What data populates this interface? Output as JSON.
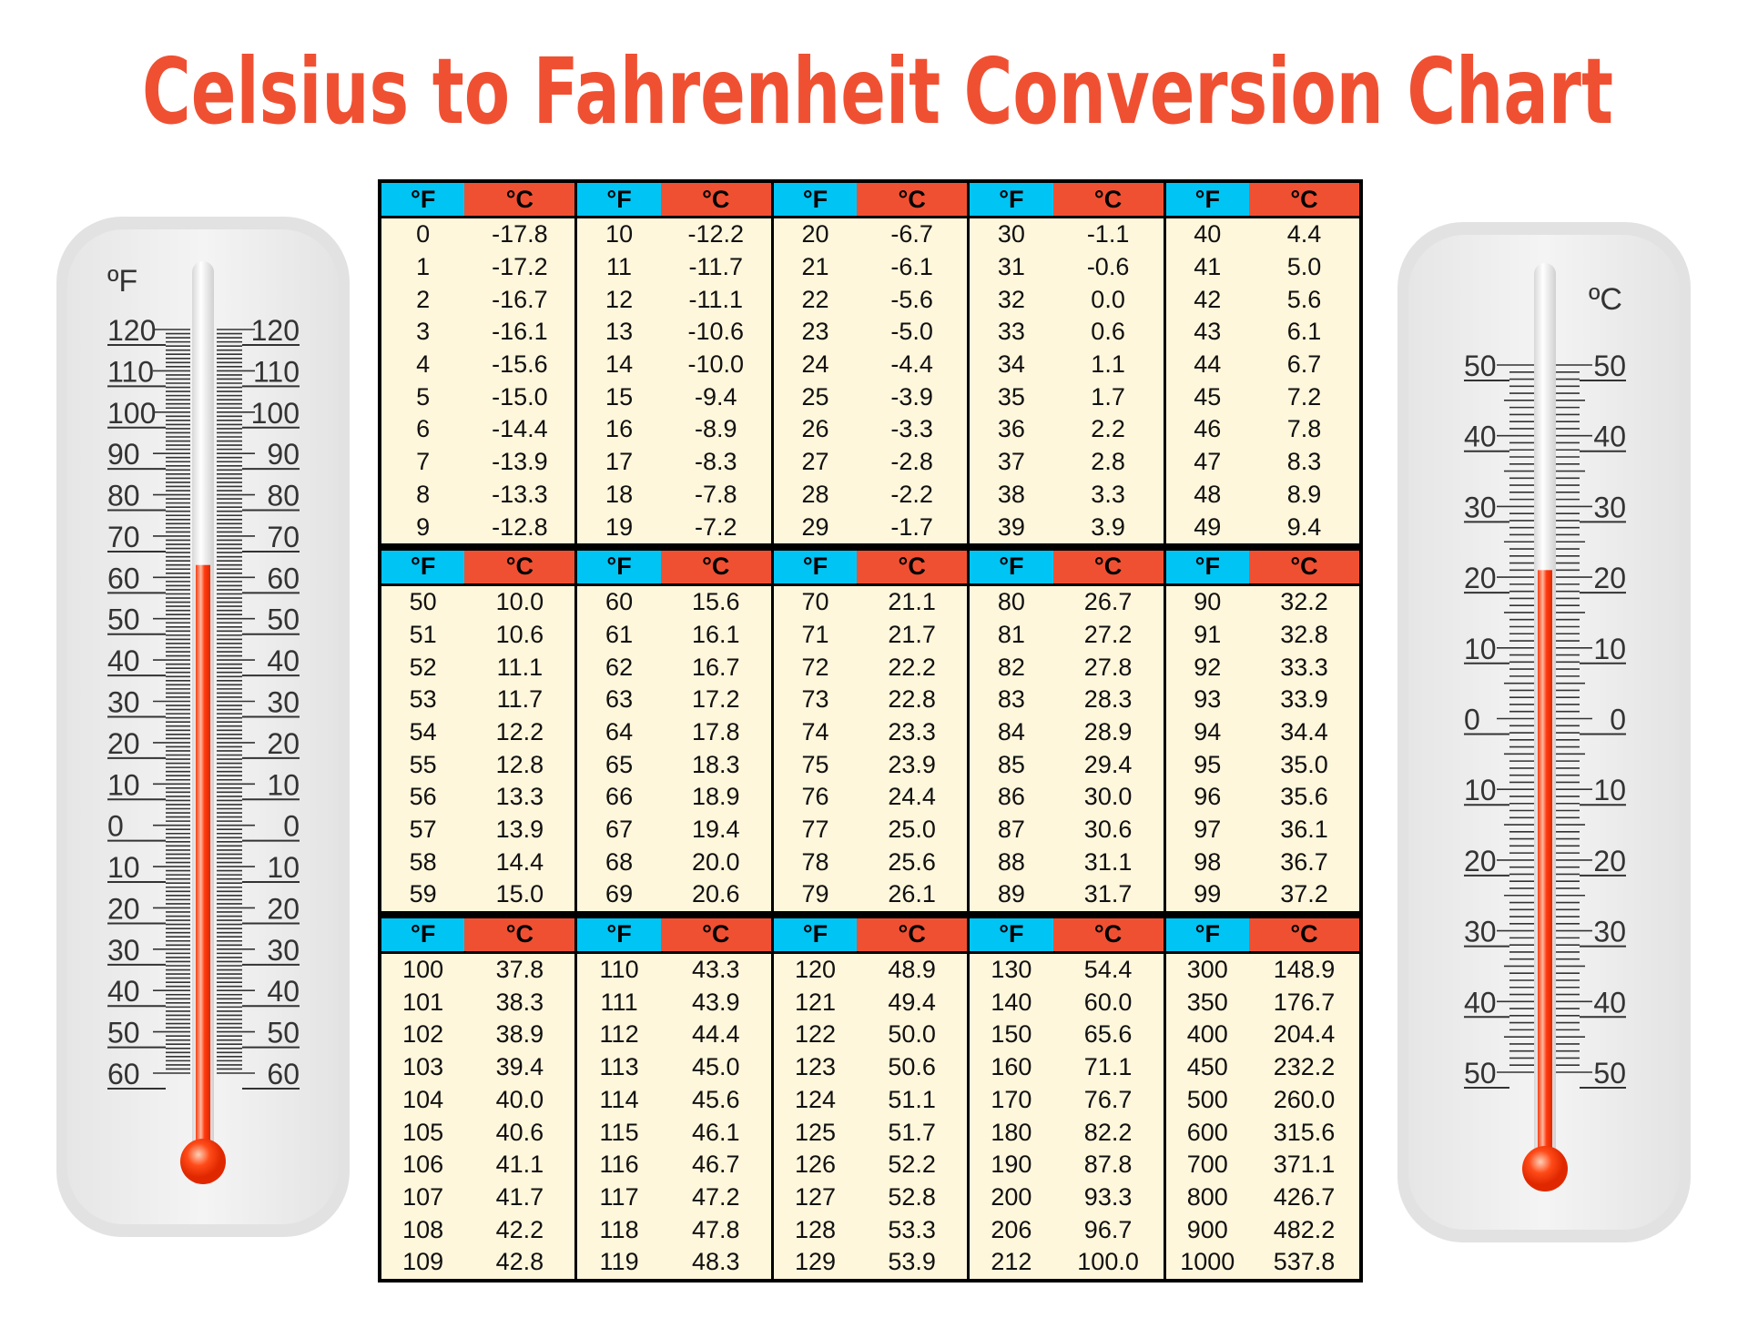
{
  "title": "Celsius to Fahrenheit Conversion Chart",
  "colors": {
    "title": "#f05032",
    "fahrenheit_header": "#00c4f4",
    "celsius_header": "#f05032",
    "cell_background": "#fff7dc",
    "mercury": "#ff3a10"
  },
  "thermometer_left": {
    "unit": "ºF",
    "labels": [
      "120",
      "110",
      "100",
      "90",
      "80",
      "70",
      "60",
      "50",
      "40",
      "30",
      "20",
      "10",
      "0",
      "10",
      "20",
      "30",
      "40",
      "50",
      "60"
    ],
    "range": [
      -60,
      120
    ],
    "reading": 63
  },
  "thermometer_right": {
    "unit": "ºC",
    "labels": [
      "50",
      "40",
      "30",
      "20",
      "10",
      "0",
      "10",
      "20",
      "30",
      "40",
      "50"
    ],
    "range": [
      -50,
      50
    ],
    "reading": 21
  },
  "chart_data": {
    "type": "table",
    "title": "Celsius to Fahrenheit Conversion Chart",
    "header": {
      "f": "°F",
      "c": "°C"
    },
    "sections": [
      [
        [
          [
            "0",
            "-17.8"
          ],
          [
            "1",
            "-17.2"
          ],
          [
            "2",
            "-16.7"
          ],
          [
            "3",
            "-16.1"
          ],
          [
            "4",
            "-15.6"
          ],
          [
            "5",
            "-15.0"
          ],
          [
            "6",
            "-14.4"
          ],
          [
            "7",
            "-13.9"
          ],
          [
            "8",
            "-13.3"
          ],
          [
            "9",
            "-12.8"
          ]
        ],
        [
          [
            "10",
            "-12.2"
          ],
          [
            "11",
            "-11.7"
          ],
          [
            "12",
            "-11.1"
          ],
          [
            "13",
            "-10.6"
          ],
          [
            "14",
            "-10.0"
          ],
          [
            "15",
            "-9.4"
          ],
          [
            "16",
            "-8.9"
          ],
          [
            "17",
            "-8.3"
          ],
          [
            "18",
            "-7.8"
          ],
          [
            "19",
            "-7.2"
          ]
        ],
        [
          [
            "20",
            "-6.7"
          ],
          [
            "21",
            "-6.1"
          ],
          [
            "22",
            "-5.6"
          ],
          [
            "23",
            "-5.0"
          ],
          [
            "24",
            "-4.4"
          ],
          [
            "25",
            "-3.9"
          ],
          [
            "26",
            "-3.3"
          ],
          [
            "27",
            "-2.8"
          ],
          [
            "28",
            "-2.2"
          ],
          [
            "29",
            "-1.7"
          ]
        ],
        [
          [
            "30",
            "-1.1"
          ],
          [
            "31",
            "-0.6"
          ],
          [
            "32",
            "0.0"
          ],
          [
            "33",
            "0.6"
          ],
          [
            "34",
            "1.1"
          ],
          [
            "35",
            "1.7"
          ],
          [
            "36",
            "2.2"
          ],
          [
            "37",
            "2.8"
          ],
          [
            "38",
            "3.3"
          ],
          [
            "39",
            "3.9"
          ]
        ],
        [
          [
            "40",
            "4.4"
          ],
          [
            "41",
            "5.0"
          ],
          [
            "42",
            "5.6"
          ],
          [
            "43",
            "6.1"
          ],
          [
            "44",
            "6.7"
          ],
          [
            "45",
            "7.2"
          ],
          [
            "46",
            "7.8"
          ],
          [
            "47",
            "8.3"
          ],
          [
            "48",
            "8.9"
          ],
          [
            "49",
            "9.4"
          ]
        ]
      ],
      [
        [
          [
            "50",
            "10.0"
          ],
          [
            "51",
            "10.6"
          ],
          [
            "52",
            "11.1"
          ],
          [
            "53",
            "11.7"
          ],
          [
            "54",
            "12.2"
          ],
          [
            "55",
            "12.8"
          ],
          [
            "56",
            "13.3"
          ],
          [
            "57",
            "13.9"
          ],
          [
            "58",
            "14.4"
          ],
          [
            "59",
            "15.0"
          ]
        ],
        [
          [
            "60",
            "15.6"
          ],
          [
            "61",
            "16.1"
          ],
          [
            "62",
            "16.7"
          ],
          [
            "63",
            "17.2"
          ],
          [
            "64",
            "17.8"
          ],
          [
            "65",
            "18.3"
          ],
          [
            "66",
            "18.9"
          ],
          [
            "67",
            "19.4"
          ],
          [
            "68",
            "20.0"
          ],
          [
            "69",
            "20.6"
          ]
        ],
        [
          [
            "70",
            "21.1"
          ],
          [
            "71",
            "21.7"
          ],
          [
            "72",
            "22.2"
          ],
          [
            "73",
            "22.8"
          ],
          [
            "74",
            "23.3"
          ],
          [
            "75",
            "23.9"
          ],
          [
            "76",
            "24.4"
          ],
          [
            "77",
            "25.0"
          ],
          [
            "78",
            "25.6"
          ],
          [
            "79",
            "26.1"
          ]
        ],
        [
          [
            "80",
            "26.7"
          ],
          [
            "81",
            "27.2"
          ],
          [
            "82",
            "27.8"
          ],
          [
            "83",
            "28.3"
          ],
          [
            "84",
            "28.9"
          ],
          [
            "85",
            "29.4"
          ],
          [
            "86",
            "30.0"
          ],
          [
            "87",
            "30.6"
          ],
          [
            "88",
            "31.1"
          ],
          [
            "89",
            "31.7"
          ]
        ],
        [
          [
            "90",
            "32.2"
          ],
          [
            "91",
            "32.8"
          ],
          [
            "92",
            "33.3"
          ],
          [
            "93",
            "33.9"
          ],
          [
            "94",
            "34.4"
          ],
          [
            "95",
            "35.0"
          ],
          [
            "96",
            "35.6"
          ],
          [
            "97",
            "36.1"
          ],
          [
            "98",
            "36.7"
          ],
          [
            "99",
            "37.2"
          ]
        ]
      ],
      [
        [
          [
            "100",
            "37.8"
          ],
          [
            "101",
            "38.3"
          ],
          [
            "102",
            "38.9"
          ],
          [
            "103",
            "39.4"
          ],
          [
            "104",
            "40.0"
          ],
          [
            "105",
            "40.6"
          ],
          [
            "106",
            "41.1"
          ],
          [
            "107",
            "41.7"
          ],
          [
            "108",
            "42.2"
          ],
          [
            "109",
            "42.8"
          ]
        ],
        [
          [
            "110",
            "43.3"
          ],
          [
            "111",
            "43.9"
          ],
          [
            "112",
            "44.4"
          ],
          [
            "113",
            "45.0"
          ],
          [
            "114",
            "45.6"
          ],
          [
            "115",
            "46.1"
          ],
          [
            "116",
            "46.7"
          ],
          [
            "117",
            "47.2"
          ],
          [
            "118",
            "47.8"
          ],
          [
            "119",
            "48.3"
          ]
        ],
        [
          [
            "120",
            "48.9"
          ],
          [
            "121",
            "49.4"
          ],
          [
            "122",
            "50.0"
          ],
          [
            "123",
            "50.6"
          ],
          [
            "124",
            "51.1"
          ],
          [
            "125",
            "51.7"
          ],
          [
            "126",
            "52.2"
          ],
          [
            "127",
            "52.8"
          ],
          [
            "128",
            "53.3"
          ],
          [
            "129",
            "53.9"
          ]
        ],
        [
          [
            "130",
            "54.4"
          ],
          [
            "140",
            "60.0"
          ],
          [
            "150",
            "65.6"
          ],
          [
            "160",
            "71.1"
          ],
          [
            "170",
            "76.7"
          ],
          [
            "180",
            "82.2"
          ],
          [
            "190",
            "87.8"
          ],
          [
            "200",
            "93.3"
          ],
          [
            "206",
            "96.7"
          ],
          [
            "212",
            "100.0"
          ]
        ],
        [
          [
            "300",
            "148.9"
          ],
          [
            "350",
            "176.7"
          ],
          [
            "400",
            "204.4"
          ],
          [
            "450",
            "232.2"
          ],
          [
            "500",
            "260.0"
          ],
          [
            "600",
            "315.6"
          ],
          [
            "700",
            "371.1"
          ],
          [
            "800",
            "426.7"
          ],
          [
            "900",
            "482.2"
          ],
          [
            "1000",
            "537.8"
          ]
        ]
      ]
    ]
  }
}
